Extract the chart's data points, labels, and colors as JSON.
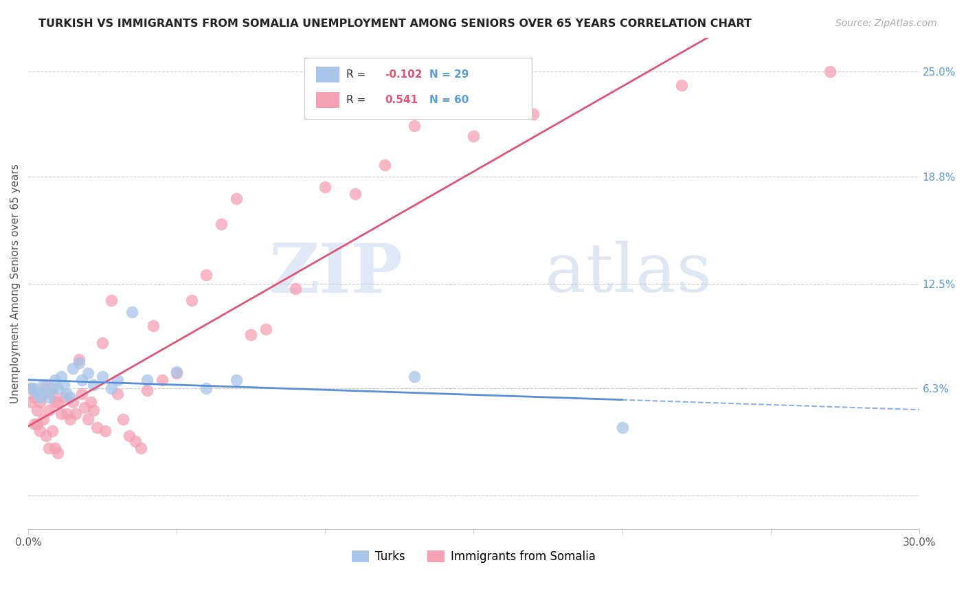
{
  "title": "TURKISH VS IMMIGRANTS FROM SOMALIA UNEMPLOYMENT AMONG SENIORS OVER 65 YEARS CORRELATION CHART",
  "source": "Source: ZipAtlas.com",
  "ylabel": "Unemployment Among Seniors over 65 years",
  "xlim": [
    0.0,
    0.3
  ],
  "ylim": [
    -0.02,
    0.27
  ],
  "yticks": [
    0.0,
    0.063,
    0.125,
    0.188,
    0.25
  ],
  "ytick_labels": [
    "",
    "6.3%",
    "12.5%",
    "18.8%",
    "25.0%"
  ],
  "legend1_label": "Turks",
  "legend2_label": "Immigrants from Somalia",
  "R_turks": -0.102,
  "N_turks": 29,
  "R_somalia": 0.541,
  "N_somalia": 60,
  "color_turks": "#a8c4e8",
  "color_somalia": "#f4a0b5",
  "line_color_turks": "#5b8dd9",
  "line_color_somalia": "#e05575",
  "watermark_zip": "ZIP",
  "watermark_atlas": "atlas",
  "turks_x": [
    0.001,
    0.002,
    0.003,
    0.004,
    0.005,
    0.006,
    0.007,
    0.008,
    0.009,
    0.01,
    0.011,
    0.012,
    0.013,
    0.014,
    0.015,
    0.017,
    0.018,
    0.02,
    0.022,
    0.025,
    0.028,
    0.03,
    0.035,
    0.04,
    0.05,
    0.06,
    0.07,
    0.13,
    0.2
  ],
  "turks_y": [
    0.063,
    0.063,
    0.06,
    0.058,
    0.065,
    0.062,
    0.058,
    0.063,
    0.068,
    0.063,
    0.07,
    0.065,
    0.06,
    0.058,
    0.075,
    0.078,
    0.068,
    0.072,
    0.065,
    0.07,
    0.063,
    0.068,
    0.108,
    0.068,
    0.073,
    0.063,
    0.068,
    0.07,
    0.04
  ],
  "somalia_x": [
    0.001,
    0.001,
    0.002,
    0.002,
    0.003,
    0.003,
    0.004,
    0.004,
    0.005,
    0.005,
    0.006,
    0.006,
    0.007,
    0.007,
    0.008,
    0.008,
    0.009,
    0.009,
    0.01,
    0.01,
    0.011,
    0.012,
    0.013,
    0.014,
    0.015,
    0.016,
    0.017,
    0.018,
    0.019,
    0.02,
    0.021,
    0.022,
    0.023,
    0.025,
    0.026,
    0.028,
    0.03,
    0.032,
    0.034,
    0.036,
    0.038,
    0.04,
    0.042,
    0.045,
    0.05,
    0.055,
    0.06,
    0.065,
    0.07,
    0.075,
    0.08,
    0.09,
    0.1,
    0.11,
    0.12,
    0.13,
    0.15,
    0.17,
    0.22,
    0.27
  ],
  "somalia_y": [
    0.063,
    0.055,
    0.058,
    0.042,
    0.05,
    0.042,
    0.055,
    0.038,
    0.06,
    0.045,
    0.065,
    0.035,
    0.05,
    0.028,
    0.06,
    0.038,
    0.055,
    0.028,
    0.055,
    0.025,
    0.048,
    0.058,
    0.048,
    0.045,
    0.055,
    0.048,
    0.08,
    0.06,
    0.052,
    0.045,
    0.055,
    0.05,
    0.04,
    0.09,
    0.038,
    0.115,
    0.06,
    0.045,
    0.035,
    0.032,
    0.028,
    0.062,
    0.1,
    0.068,
    0.072,
    0.115,
    0.13,
    0.16,
    0.175,
    0.095,
    0.098,
    0.122,
    0.182,
    0.178,
    0.195,
    0.218,
    0.212,
    0.225,
    0.242,
    0.25
  ]
}
